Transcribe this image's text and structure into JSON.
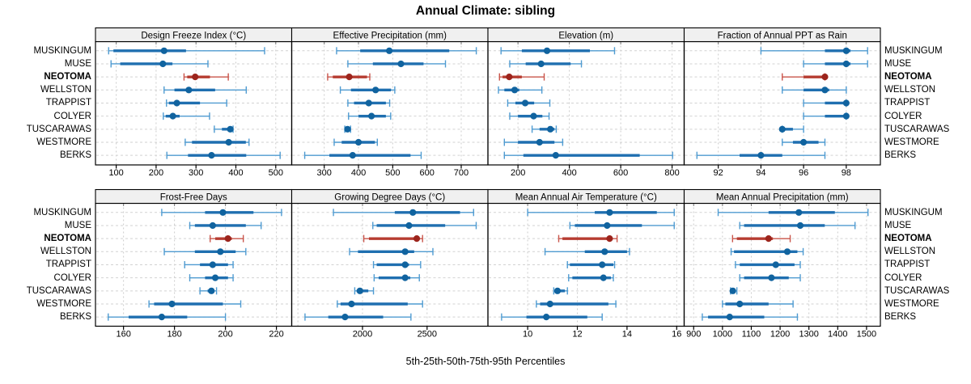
{
  "title": "Annual Climate: sibling",
  "caption": "5th-25th-50th-75th-95th Percentiles",
  "colors": {
    "blue_line": "#4f9bd1",
    "blue_bar": "#1f6fb0",
    "blue_dot": "#10639f",
    "red_line": "#c9544a",
    "red_bar": "#b63c31",
    "red_dot": "#9c241c",
    "grid": "#cccccc",
    "row_guide": "#d2d2d2",
    "strip_bg": "#f0f0f0",
    "border": "#000000",
    "tick_label": "#000000"
  },
  "chart_data": {
    "type": "dotplot",
    "subtype": "lattice-percentile-panels",
    "title": "Annual Climate: sibling",
    "caption": "5th-25th-50th-75th-95th Percentiles",
    "percentiles": [
      5,
      25,
      50,
      75,
      95
    ],
    "legend_position": "none",
    "grid": "dotted",
    "sites": [
      "MUSKINGUM",
      "MUSE",
      "NEOTOMA",
      "WELLSTON",
      "TRAPPIST",
      "COLYER",
      "TUSCARAWAS",
      "WESTMORE",
      "BERKS"
    ],
    "highlight_site": "NEOTOMA",
    "panels": [
      {
        "label": "Design Freeze Index (°C)",
        "row": 0,
        "col": 0,
        "domain": [
          48,
          540
        ],
        "ticks": [
          100,
          200,
          300,
          400,
          500
        ],
        "series": [
          [
            81,
            93,
            220,
            275,
            472
          ],
          [
            87,
            110,
            217,
            241,
            330
          ],
          [
            270,
            278,
            298,
            335,
            381
          ],
          [
            220,
            246,
            282,
            348,
            426
          ],
          [
            226,
            232,
            252,
            310,
            377
          ],
          [
            218,
            224,
            242,
            259,
            334
          ],
          [
            346,
            365,
            386,
            390,
            393
          ],
          [
            273,
            290,
            382,
            425,
            433
          ],
          [
            227,
            280,
            339,
            426,
            511
          ]
        ]
      },
      {
        "label": "Effective Precipitation (mm)",
        "row": 0,
        "col": 1,
        "domain": [
          205,
          778
        ],
        "ticks": [
          300,
          400,
          500,
          600,
          700
        ],
        "series": [
          [
            336,
            405,
            490,
            665,
            744
          ],
          [
            369,
            442,
            524,
            590,
            654
          ],
          [
            310,
            325,
            373,
            425,
            433
          ],
          [
            347,
            378,
            450,
            495,
            506
          ],
          [
            369,
            387,
            430,
            480,
            491
          ],
          [
            371,
            400,
            438,
            480,
            494
          ],
          [
            360,
            364,
            368,
            373,
            377
          ],
          [
            329,
            351,
            400,
            448,
            455
          ],
          [
            243,
            315,
            383,
            552,
            583
          ]
        ]
      },
      {
        "label": "Elevation (m)",
        "row": 0,
        "col": 2,
        "domain": [
          83,
          847
        ],
        "ticks": [
          200,
          400,
          600,
          800
        ],
        "series": [
          [
            134,
            215,
            313,
            480,
            576
          ],
          [
            168,
            230,
            290,
            405,
            447
          ],
          [
            128,
            140,
            166,
            215,
            302
          ],
          [
            124,
            147,
            187,
            205,
            293
          ],
          [
            160,
            190,
            228,
            263,
            324
          ],
          [
            168,
            200,
            261,
            295,
            321
          ],
          [
            255,
            284,
            326,
            342,
            349
          ],
          [
            147,
            200,
            284,
            342,
            374
          ],
          [
            147,
            221,
            347,
            674,
            802
          ]
        ]
      },
      {
        "label": "Fraction of Annual PPT as Rain",
        "row": 0,
        "col": 3,
        "domain": [
          90.4,
          99.6
        ],
        "ticks": [
          92,
          94,
          96,
          98
        ],
        "series": [
          [
            94,
            97,
            98,
            98.2,
            99
          ],
          [
            96,
            97,
            98,
            98.2,
            99
          ],
          [
            95,
            96,
            97,
            97,
            97
          ],
          [
            95,
            96,
            97,
            97.2,
            98
          ],
          [
            96,
            97,
            98,
            98,
            98
          ],
          [
            96,
            97,
            98,
            98,
            98
          ],
          [
            95,
            95,
            95,
            95.5,
            96
          ],
          [
            95,
            95.5,
            96,
            96.7,
            97
          ],
          [
            91,
            93,
            94,
            95,
            97
          ]
        ]
      },
      {
        "label": "Frost-Free Days",
        "row": 1,
        "col": 0,
        "domain": [
          149,
          226
        ],
        "ticks": [
          160,
          180,
          200,
          220
        ],
        "series": [
          [
            175,
            192,
            199,
            211,
            222
          ],
          [
            186,
            188,
            195,
            208,
            214
          ],
          [
            194,
            196,
            201,
            202.5,
            207
          ],
          [
            176,
            188,
            198,
            204,
            208
          ],
          [
            184,
            190,
            195,
            201,
            203
          ],
          [
            186,
            192,
            196,
            201,
            203
          ],
          [
            190,
            193,
            194.5,
            195.5,
            196.5
          ],
          [
            170,
            172,
            179,
            199,
            206
          ],
          [
            154,
            162,
            175,
            185,
            200
          ]
        ]
      },
      {
        "label": "Growing Degree Days (°C)",
        "row": 1,
        "col": 1,
        "domain": [
          1452,
          2971
        ],
        "ticks": [
          2000,
          2500
        ],
        "minor_gridlines": [
          1500
        ],
        "series": [
          [
            1775,
            2250,
            2390,
            2755,
            2860
          ],
          [
            2080,
            2110,
            2360,
            2640,
            2880
          ],
          [
            2010,
            2050,
            2420,
            2440,
            2465
          ],
          [
            1900,
            1965,
            2330,
            2400,
            2545
          ],
          [
            2085,
            2110,
            2330,
            2360,
            2450
          ],
          [
            2090,
            2125,
            2330,
            2370,
            2440
          ],
          [
            1940,
            1955,
            1980,
            2045,
            2085
          ],
          [
            1805,
            1830,
            1915,
            2350,
            2465
          ],
          [
            1555,
            1735,
            1865,
            2160,
            2375
          ]
        ]
      },
      {
        "label": "Mean Annual Air Temperature (°C)",
        "row": 1,
        "col": 2,
        "domain": [
          8.4,
          16.3
        ],
        "ticks": [
          10,
          12,
          14,
          16
        ],
        "series": [
          [
            10.0,
            12.7,
            13.3,
            15.2,
            15.9
          ],
          [
            11.7,
            11.9,
            13.2,
            14.6,
            15.9
          ],
          [
            11.25,
            11.4,
            13.3,
            13.4,
            13.6
          ],
          [
            10.7,
            12.3,
            13.1,
            14.0,
            14.1
          ],
          [
            11.6,
            11.7,
            13.0,
            13.45,
            13.5
          ],
          [
            11.65,
            11.8,
            13.05,
            13.35,
            13.45
          ],
          [
            11.05,
            11.15,
            11.2,
            11.5,
            11.6
          ],
          [
            10.35,
            10.5,
            10.9,
            13.25,
            13.55
          ],
          [
            8.95,
            9.95,
            10.75,
            12.4,
            13.0
          ]
        ]
      },
      {
        "label": "Mean Annual Precipitation (mm)",
        "row": 1,
        "col": 3,
        "domain": [
          867,
          1548
        ],
        "ticks": [
          900,
          1000,
          1100,
          1200,
          1300,
          1400,
          1500
        ],
        "series": [
          [
            985,
            1160,
            1265,
            1390,
            1505
          ],
          [
            1060,
            1075,
            1270,
            1355,
            1460
          ],
          [
            1035,
            1050,
            1160,
            1175,
            1235
          ],
          [
            1030,
            1040,
            1225,
            1260,
            1280
          ],
          [
            1045,
            1060,
            1185,
            1250,
            1270
          ],
          [
            1060,
            1075,
            1170,
            1230,
            1270
          ],
          [
            1028,
            1032,
            1036,
            1042,
            1050
          ],
          [
            1000,
            1010,
            1060,
            1160,
            1245
          ],
          [
            930,
            950,
            1025,
            1145,
            1260
          ]
        ]
      }
    ]
  }
}
